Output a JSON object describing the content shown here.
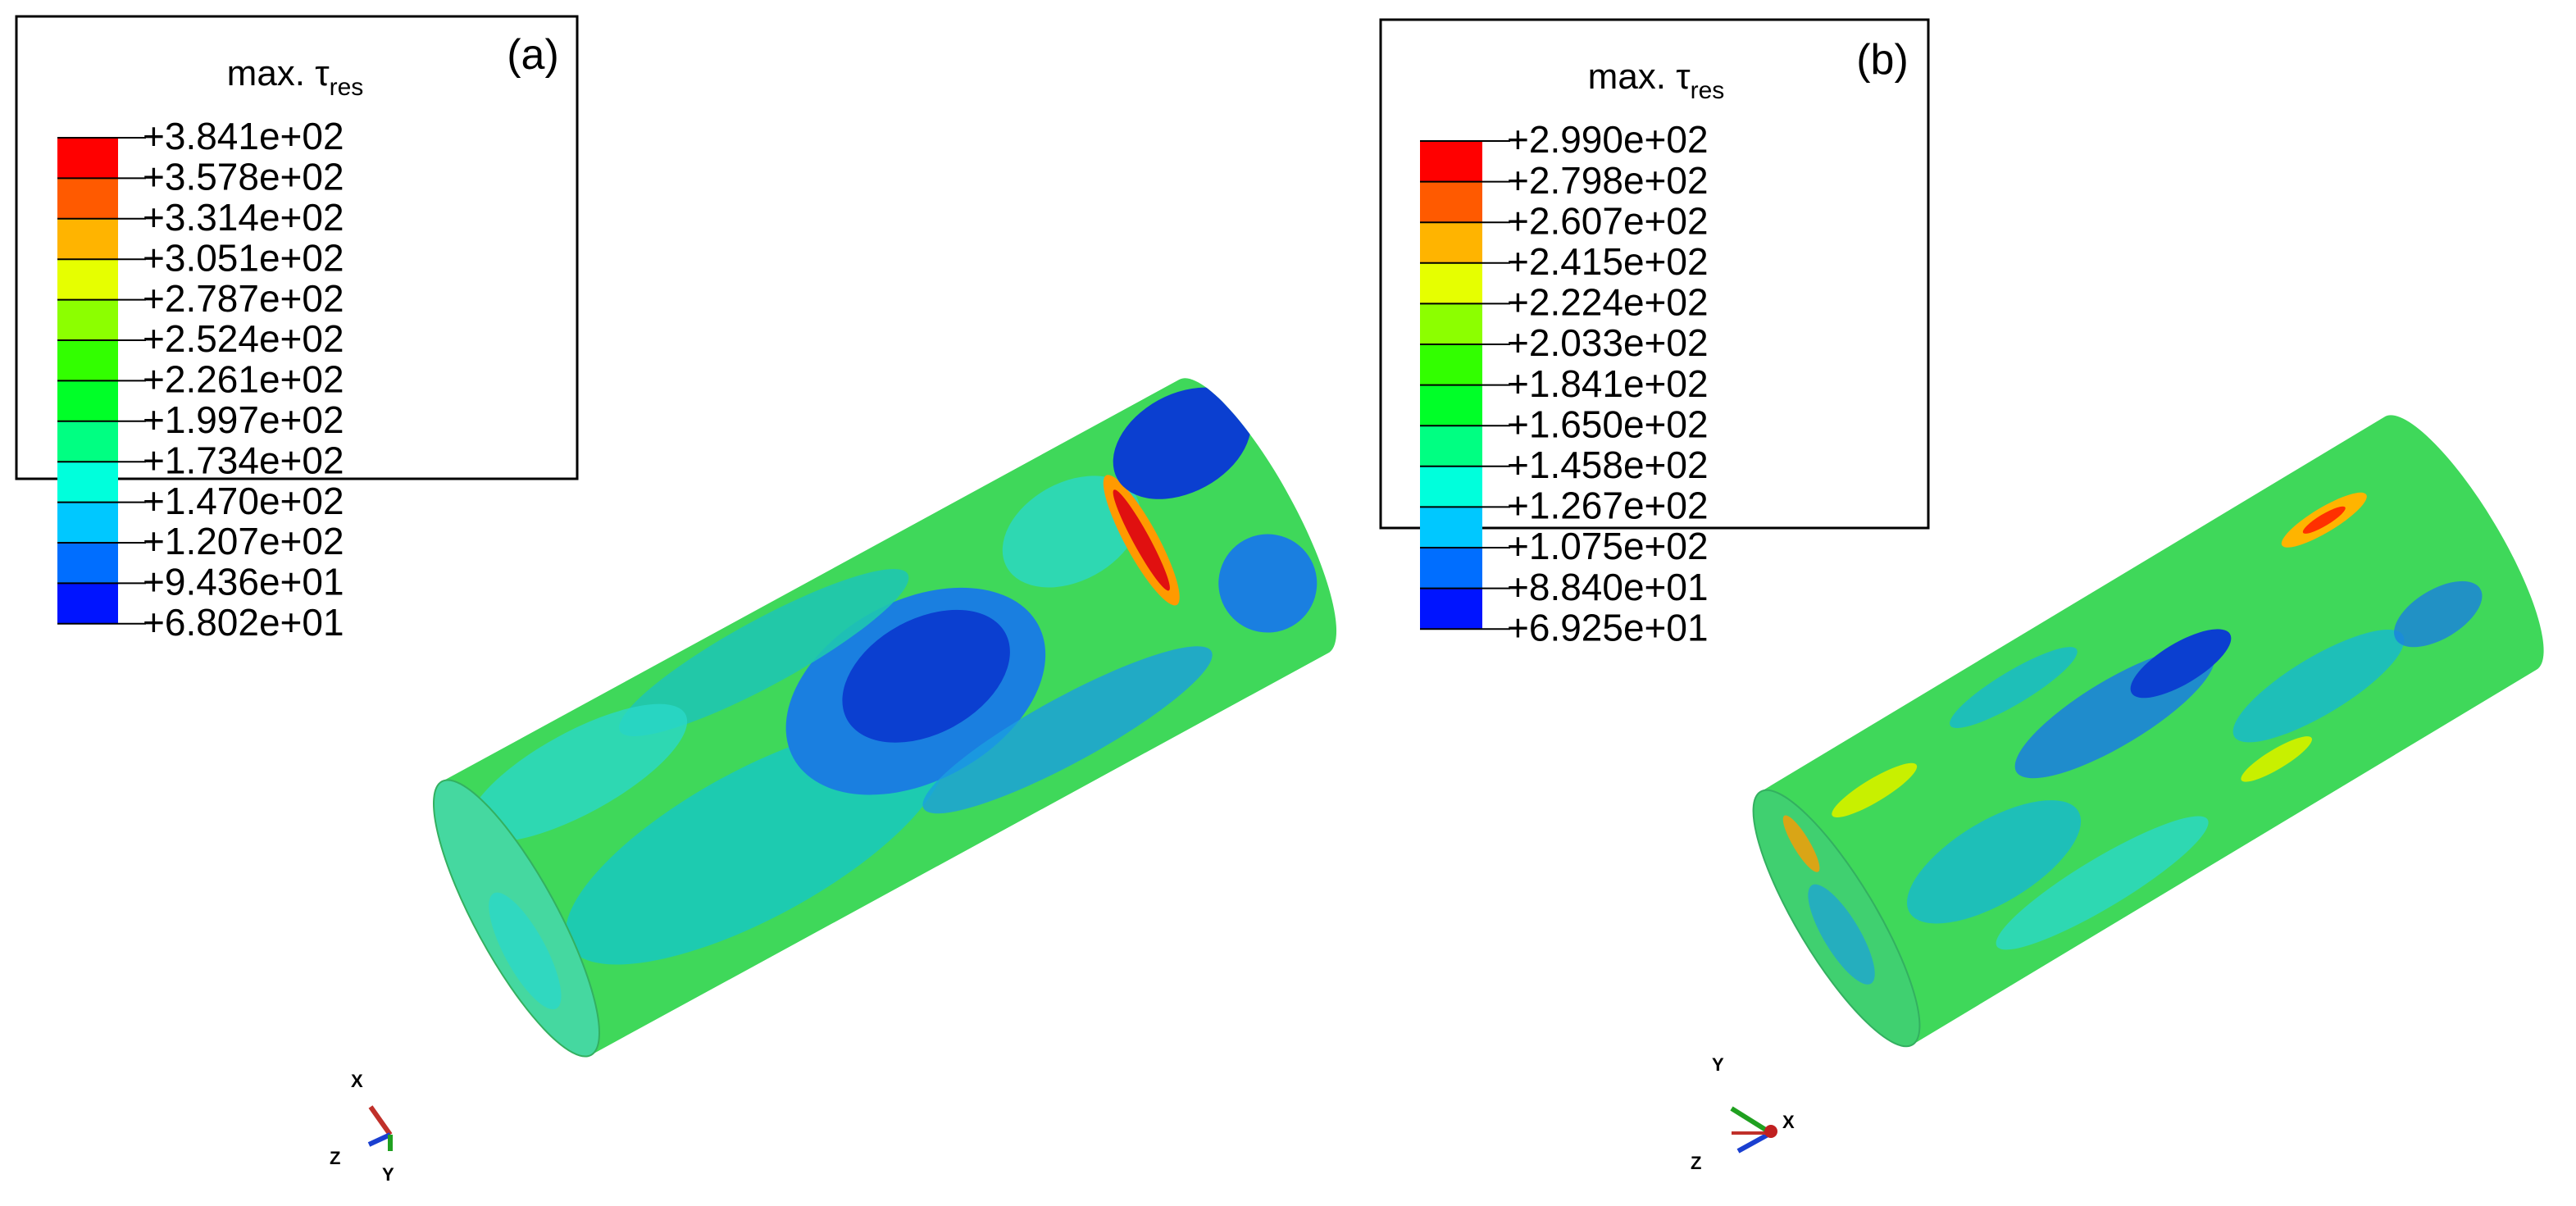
{
  "panels": [
    {
      "label": "(a)",
      "legend": {
        "title": "max. τ",
        "title_sub": "res",
        "values": [
          "+3.841e+02",
          "+3.578e+02",
          "+3.314e+02",
          "+3.051e+02",
          "+2.787e+02",
          "+2.524e+02",
          "+2.261e+02",
          "+1.997e+02",
          "+1.734e+02",
          "+1.470e+02",
          "+1.207e+02",
          "+9.436e+01",
          "+6.802e+01"
        ],
        "colors": [
          "#ff0000",
          "#ff5a00",
          "#ffb400",
          "#e6ff00",
          "#8cff00",
          "#32ff00",
          "#00ff28",
          "#00ff82",
          "#00ffdc",
          "#00c8ff",
          "#006eff",
          "#0014ff"
        ]
      },
      "triad": [
        "X",
        "Z",
        "Y"
      ]
    },
    {
      "label": "(b)",
      "legend": {
        "title": "max. τ",
        "title_sub": "res",
        "values": [
          "+2.990e+02",
          "+2.798e+02",
          "+2.607e+02",
          "+2.415e+02",
          "+2.224e+02",
          "+2.033e+02",
          "+1.841e+02",
          "+1.650e+02",
          "+1.458e+02",
          "+1.267e+02",
          "+1.075e+02",
          "+8.840e+01",
          "+6.925e+01"
        ],
        "colors": [
          "#ff0000",
          "#ff5a00",
          "#ffb400",
          "#e6ff00",
          "#8cff00",
          "#32ff00",
          "#00ff28",
          "#00ff82",
          "#00ffdc",
          "#00c8ff",
          "#006eff",
          "#0014ff"
        ]
      },
      "triad": [
        "Y",
        "Z",
        "X"
      ]
    }
  ]
}
